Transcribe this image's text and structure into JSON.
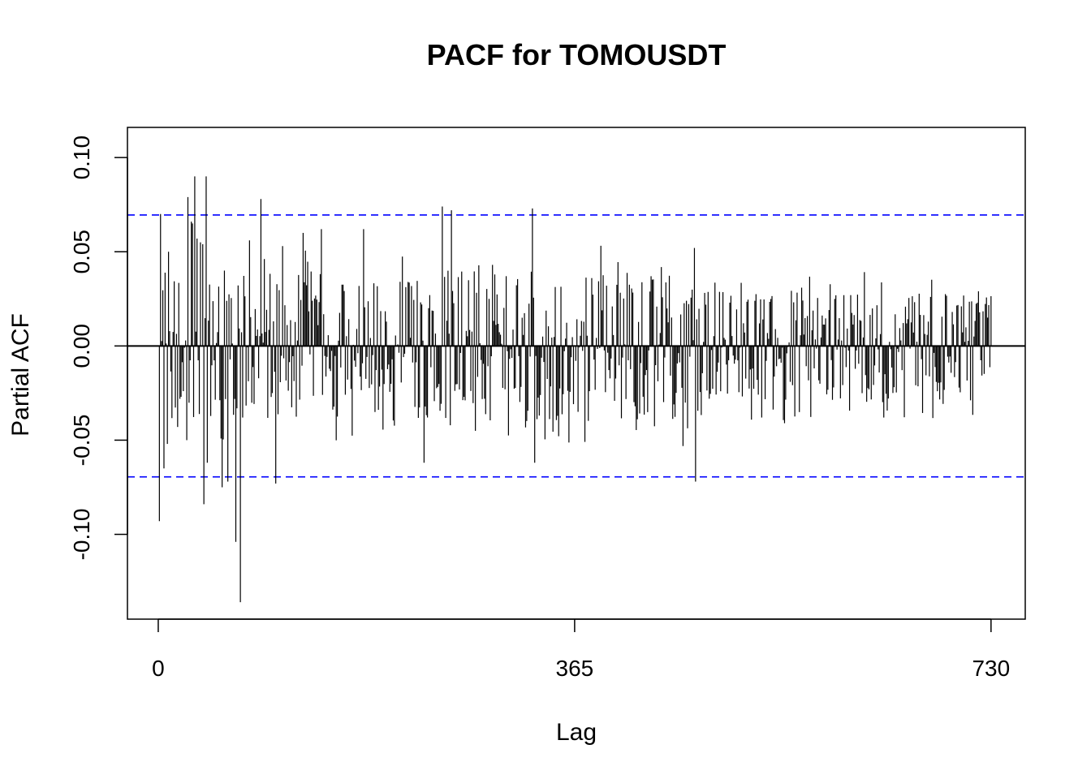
{
  "chart_data": {
    "type": "bar",
    "title": "PACF for TOMOUSDT",
    "xlabel": "Lag",
    "ylabel": "Partial ACF",
    "x_ticks": [
      0,
      365,
      730
    ],
    "y_ticks": [
      "-0.10",
      "-0.05",
      "0.00",
      "0.05",
      "0.10"
    ],
    "y_tick_values": [
      -0.1,
      -0.05,
      0.0,
      0.05,
      0.1
    ],
    "xlim": [
      -27,
      760
    ],
    "ylim": [
      -0.145,
      0.116
    ],
    "confidence_bound": 0.0695,
    "confidence_color": "#0000ff",
    "bar_color": "#000000",
    "grid": false,
    "lag_range": [
      1,
      730
    ],
    "notable_values": [
      {
        "lag": 1,
        "value": -0.093
      },
      {
        "lag": 2,
        "value": 0.07
      },
      {
        "lag": 5,
        "value": -0.065
      },
      {
        "lag": 8,
        "value": -0.052
      },
      {
        "lag": 9,
        "value": 0.05
      },
      {
        "lag": 17,
        "value": -0.043
      },
      {
        "lag": 25,
        "value": -0.05
      },
      {
        "lag": 26,
        "value": 0.079
      },
      {
        "lag": 29,
        "value": 0.066
      },
      {
        "lag": 30,
        "value": 0.065
      },
      {
        "lag": 32,
        "value": 0.09
      },
      {
        "lag": 34,
        "value": 0.057
      },
      {
        "lag": 37,
        "value": 0.055
      },
      {
        "lag": 39,
        "value": 0.054
      },
      {
        "lag": 40,
        "value": -0.084
      },
      {
        "lag": 42,
        "value": 0.09
      },
      {
        "lag": 43,
        "value": -0.062
      },
      {
        "lag": 56,
        "value": -0.075
      },
      {
        "lag": 58,
        "value": 0.04
      },
      {
        "lag": 61,
        "value": -0.072
      },
      {
        "lag": 68,
        "value": -0.104
      },
      {
        "lag": 72,
        "value": -0.136
      },
      {
        "lag": 74,
        "value": -0.038
      },
      {
        "lag": 80,
        "value": 0.056
      },
      {
        "lag": 90,
        "value": 0.078
      },
      {
        "lag": 103,
        "value": -0.073
      },
      {
        "lag": 127,
        "value": 0.06
      },
      {
        "lag": 143,
        "value": 0.062
      },
      {
        "lag": 180,
        "value": 0.062
      },
      {
        "lag": 233,
        "value": -0.062
      },
      {
        "lag": 249,
        "value": 0.074
      },
      {
        "lag": 257,
        "value": 0.072
      },
      {
        "lag": 328,
        "value": 0.073
      },
      {
        "lag": 330,
        "value": -0.062
      },
      {
        "lag": 470,
        "value": 0.052
      },
      {
        "lag": 471,
        "value": -0.072
      },
      {
        "lag": 549,
        "value": -0.041
      },
      {
        "lag": 636,
        "value": -0.038
      },
      {
        "lag": 719,
        "value": 0.029
      }
    ]
  }
}
